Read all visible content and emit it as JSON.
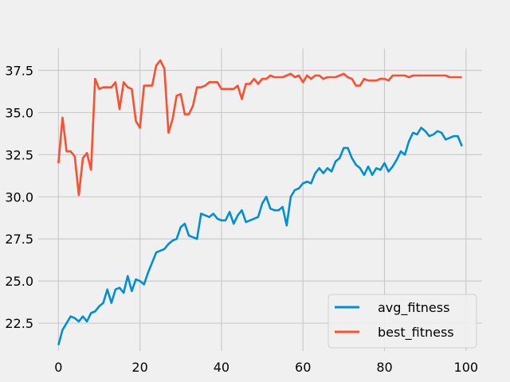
{
  "chart_data": {
    "type": "line",
    "title": "",
    "xlabel": "",
    "ylabel": "",
    "xlim": [
      -4.95,
      103.95
    ],
    "ylim": [
      20.85,
      38.8
    ],
    "xticks": [
      0,
      20,
      40,
      60,
      80,
      100
    ],
    "yticks": [
      22.5,
      25.0,
      27.5,
      30.0,
      32.5,
      35.0,
      37.5
    ],
    "xtick_labels": [
      "0",
      "20",
      "40",
      "60",
      "80",
      "100"
    ],
    "ytick_labels": [
      "22.5",
      "25.0",
      "27.5",
      "30.0",
      "32.5",
      "35.0",
      "37.5"
    ],
    "grid": true,
    "legend_position": "lower-right",
    "x": [
      0,
      1,
      2,
      3,
      4,
      5,
      6,
      7,
      8,
      9,
      10,
      11,
      12,
      13,
      14,
      15,
      16,
      17,
      18,
      19,
      20,
      21,
      22,
      23,
      24,
      25,
      26,
      27,
      28,
      29,
      30,
      31,
      32,
      33,
      34,
      35,
      36,
      37,
      38,
      39,
      40,
      41,
      42,
      43,
      44,
      45,
      46,
      47,
      48,
      49,
      50,
      51,
      52,
      53,
      54,
      55,
      56,
      57,
      58,
      59,
      60,
      61,
      62,
      63,
      64,
      65,
      66,
      67,
      68,
      69,
      70,
      71,
      72,
      73,
      74,
      75,
      76,
      77,
      78,
      79,
      80,
      81,
      82,
      83,
      84,
      85,
      86,
      87,
      88,
      89,
      90,
      91,
      92,
      93,
      94,
      95,
      96,
      97,
      98,
      99
    ],
    "series": [
      {
        "name": "avg_fitness",
        "color": "#008fd5",
        "values": [
          21.2,
          22.1,
          22.5,
          22.9,
          22.8,
          22.6,
          22.9,
          22.6,
          23.1,
          23.2,
          23.5,
          23.7,
          24.5,
          23.7,
          24.5,
          24.6,
          24.3,
          25.3,
          24.4,
          25.1,
          25.0,
          24.8,
          25.5,
          26.1,
          26.7,
          26.8,
          26.9,
          27.2,
          27.4,
          27.5,
          28.2,
          28.4,
          27.7,
          27.6,
          27.5,
          29.0,
          28.9,
          28.8,
          29.0,
          28.7,
          28.6,
          28.6,
          29.1,
          28.4,
          28.9,
          29.2,
          28.5,
          28.6,
          28.7,
          28.8,
          29.6,
          30.0,
          29.3,
          29.2,
          29.2,
          29.4,
          28.3,
          30.0,
          30.4,
          30.5,
          30.8,
          30.9,
          30.8,
          31.4,
          31.7,
          31.4,
          31.7,
          31.5,
          32.1,
          32.3,
          32.9,
          32.9,
          32.3,
          31.9,
          31.7,
          31.3,
          31.8,
          31.3,
          31.7,
          31.6,
          32.0,
          31.5,
          31.8,
          32.2,
          32.7,
          32.5,
          33.3,
          33.8,
          33.7,
          34.1,
          33.9,
          33.6,
          33.7,
          33.9,
          33.8,
          33.4,
          33.5,
          33.6,
          33.6,
          33.0
        ]
      },
      {
        "name": "best_fitness",
        "color": "#fc4f30",
        "values": [
          32.0,
          34.7,
          32.7,
          32.7,
          32.4,
          30.1,
          32.3,
          32.6,
          31.6,
          37.0,
          36.4,
          36.5,
          36.5,
          36.5,
          36.8,
          35.2,
          36.8,
          36.5,
          36.4,
          34.5,
          34.1,
          36.6,
          36.6,
          36.6,
          37.8,
          38.1,
          37.6,
          33.8,
          34.6,
          36.0,
          36.1,
          34.9,
          34.9,
          35.4,
          36.5,
          36.5,
          36.6,
          36.8,
          36.8,
          36.8,
          36.4,
          36.4,
          36.4,
          36.4,
          36.6,
          35.8,
          36.7,
          36.7,
          37.0,
          36.7,
          37.0,
          37.0,
          37.2,
          37.1,
          37.1,
          37.1,
          37.2,
          37.3,
          37.1,
          37.2,
          36.8,
          37.2,
          37.0,
          37.2,
          37.2,
          37.0,
          37.1,
          37.1,
          37.1,
          37.2,
          37.3,
          37.1,
          37.0,
          36.6,
          36.6,
          37.0,
          36.9,
          36.9,
          36.9,
          37.0,
          37.0,
          36.9,
          37.2,
          37.2,
          37.2,
          37.2,
          37.1,
          37.2,
          37.2,
          37.2,
          37.2,
          37.2,
          37.2,
          37.2,
          37.2,
          37.2,
          37.1,
          37.1,
          37.1,
          37.1
        ]
      }
    ]
  }
}
